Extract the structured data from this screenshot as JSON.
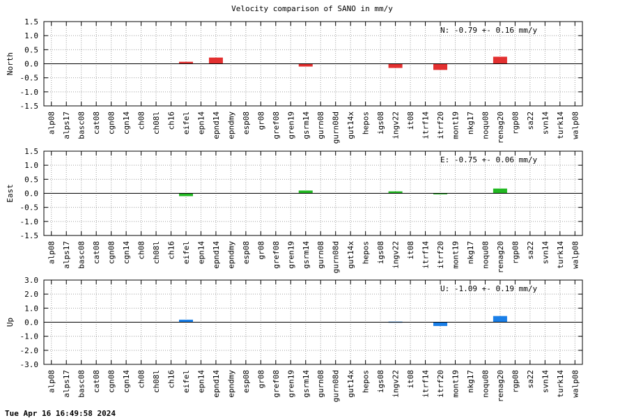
{
  "timestamp": "Tue Apr 16 16:49:58 2024",
  "chart_data": {
    "type": "bar",
    "title": "Velocity comparison of SANO in mm/y",
    "categories": [
      "alp08",
      "alps17",
      "basc08",
      "cat08",
      "cgn08",
      "cgn14",
      "ch08",
      "ch08l",
      "ch16",
      "eifel",
      "epn14",
      "epnd14",
      "epndmy",
      "esp08",
      "gr08",
      "gref08",
      "gren19",
      "gsrm14",
      "gurn08",
      "gurn08d",
      "gut14x",
      "hepos",
      "igs08",
      "ingv22",
      "it08",
      "itrf14",
      "itrf20",
      "mont19",
      "nkg17",
      "noqu08",
      "renag20",
      "rgp08",
      "sa22",
      "svn14",
      "turk14",
      "walp08"
    ],
    "panels": [
      {
        "ylabel": "North",
        "color": "#e33030",
        "ylim": [
          -1.5,
          1.5
        ],
        "yticks": [
          "1.5",
          "1.0",
          "0.5",
          "0.0",
          "-0.5",
          "-1.0",
          "-1.5"
        ],
        "stat": "N:  -0.79 +-  0.16 mm/y",
        "values": {
          "eifel": 0.07,
          "epnd14": 0.22,
          "gsrm14": -0.1,
          "ingv22": -0.15,
          "itrf20": -0.22,
          "renag20": 0.25
        }
      },
      {
        "ylabel": "East",
        "color": "#22b822",
        "ylim": [
          -1.5,
          1.5
        ],
        "yticks": [
          "1.5",
          "1.0",
          "0.5",
          "0.0",
          "-0.5",
          "-1.0",
          "-1.5"
        ],
        "stat": "E:  -0.75 +-  0.06 mm/y",
        "values": {
          "eifel": -0.1,
          "gsrm14": 0.1,
          "ingv22": 0.07,
          "itrf20": -0.03,
          "renag20": 0.17
        }
      },
      {
        "ylabel": "Up",
        "color": "#1a7fe8",
        "ylim": [
          -3.0,
          3.0
        ],
        "yticks": [
          "3.0",
          "2.0",
          "1.0",
          "0.0",
          "-1.0",
          "-2.0",
          "-3.0"
        ],
        "stat": "U:  -1.09 +-  0.19 mm/y",
        "values": {
          "eifel": 0.18,
          "ingv22": 0.04,
          "itrf20": -0.27,
          "renag20": 0.44
        }
      }
    ]
  }
}
